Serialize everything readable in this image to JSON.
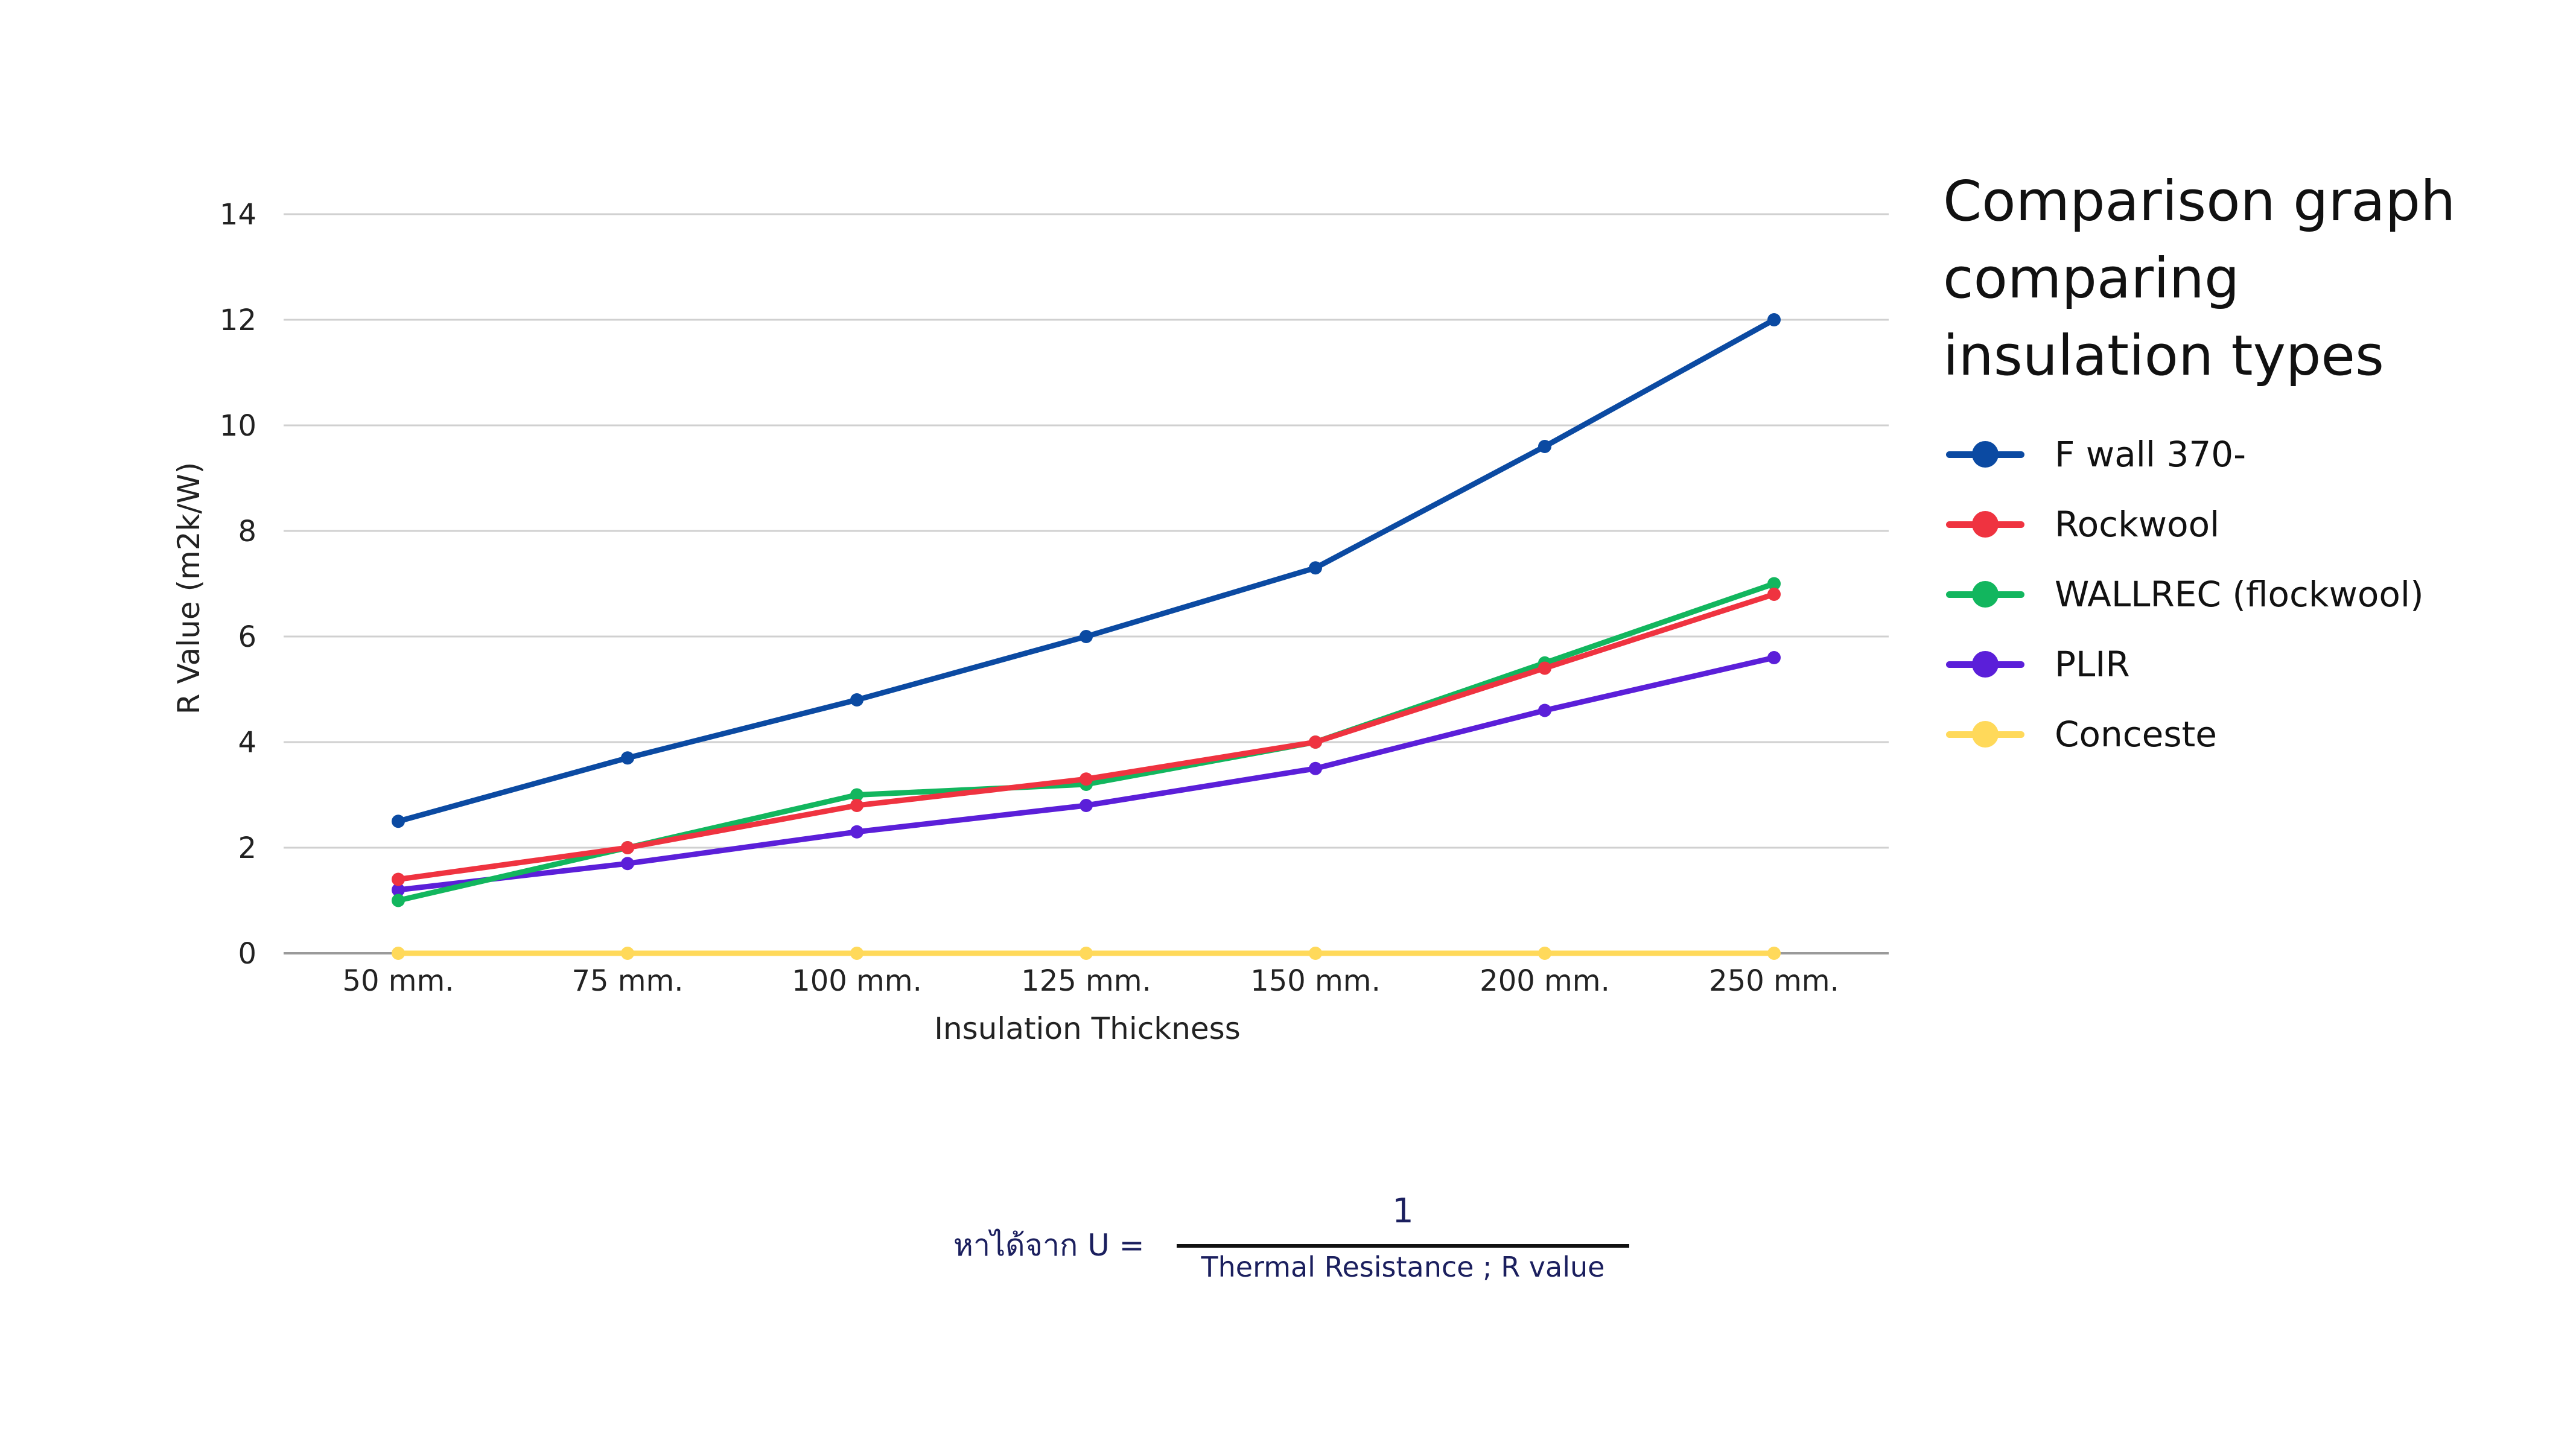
{
  "chart_data": {
    "type": "line",
    "title": "Comparison graph comparing insulation types",
    "xlabel": "Insulation Thickness",
    "ylabel": "R Value (m2k/W)",
    "categories": [
      "50 mm.",
      "75 mm.",
      "100 mm.",
      "125 mm.",
      "150 mm.",
      "200 mm.",
      "250 mm."
    ],
    "ylim": [
      0,
      14
    ],
    "yticks": [
      0,
      2,
      4,
      6,
      8,
      10,
      12,
      14
    ],
    "grid": true,
    "legend_position": "right",
    "series": [
      {
        "name": "F wall 370-",
        "color": "#0b4aa2",
        "values": [
          2.5,
          3.7,
          4.8,
          6.0,
          7.3,
          9.6,
          12.0
        ]
      },
      {
        "name": "Rockwool",
        "color": "#ef3340",
        "values": [
          1.4,
          2.0,
          2.8,
          3.3,
          4.0,
          5.4,
          6.8
        ]
      },
      {
        "name": "WALLREC (flockwool)",
        "color": "#12b65e",
        "values": [
          1.0,
          2.0,
          3.0,
          3.2,
          4.0,
          5.5,
          7.0
        ]
      },
      {
        "name": "PLIR",
        "color": "#5b1fd9",
        "values": [
          1.2,
          1.7,
          2.3,
          2.8,
          3.5,
          4.6,
          5.6
        ]
      },
      {
        "name": "Conceste",
        "color": "#ffd95a",
        "values": [
          0,
          0,
          0,
          0,
          0,
          0,
          0
        ]
      }
    ]
  },
  "title_lines": [
    "Comparison graph",
    "comparing",
    "insulation types"
  ],
  "formula": {
    "lhs": "หาได้จาก  U =",
    "numerator": "1",
    "denominator": "Thermal Resistance ; R value"
  }
}
